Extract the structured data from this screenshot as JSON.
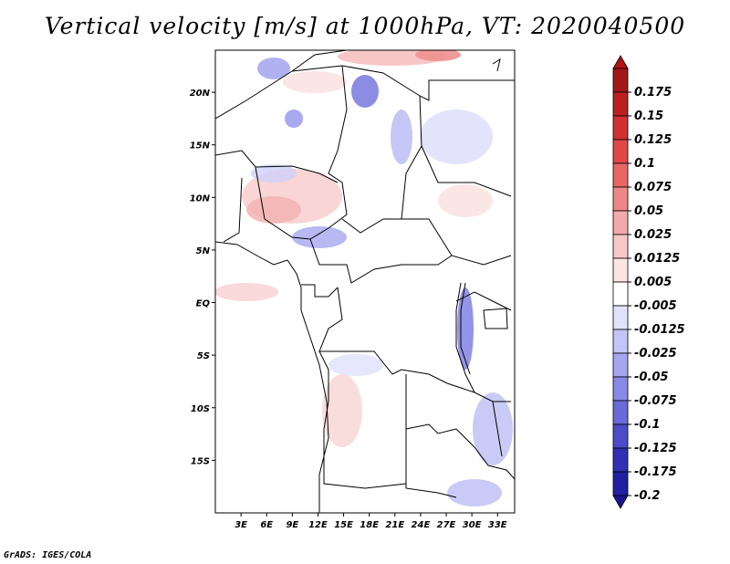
{
  "title": "Vertical velocity [m/s] at 1000hPa, VT: 2020040500",
  "credit": "GrADS: IGES/COLA",
  "map": {
    "region": "Central Africa",
    "lon_range": [
      0,
      35
    ],
    "lat_range": [
      -20,
      24
    ],
    "lat_ticks": [
      {
        "value": 20,
        "label": "20N"
      },
      {
        "value": 15,
        "label": "15N"
      },
      {
        "value": 10,
        "label": "10N"
      },
      {
        "value": 5,
        "label": "5N"
      },
      {
        "value": 0,
        "label": "EQ"
      },
      {
        "value": -5,
        "label": "5S"
      },
      {
        "value": -10,
        "label": "10S"
      },
      {
        "value": -15,
        "label": "15S"
      }
    ],
    "lon_ticks": [
      {
        "value": 3,
        "label": "3E"
      },
      {
        "value": 6,
        "label": "6E"
      },
      {
        "value": 9,
        "label": "9E"
      },
      {
        "value": 12,
        "label": "12E"
      },
      {
        "value": 15,
        "label": "15E"
      },
      {
        "value": 18,
        "label": "18E"
      },
      {
        "value": 21,
        "label": "21E"
      },
      {
        "value": 24,
        "label": "24E"
      },
      {
        "value": 27,
        "label": "27E"
      },
      {
        "value": 30,
        "label": "30E"
      },
      {
        "value": 33,
        "label": "33E"
      }
    ]
  },
  "colorbar": {
    "levels": [
      {
        "label": "0.175",
        "color": "#a01818"
      },
      {
        "label": "0.15",
        "color": "#bb2020"
      },
      {
        "label": "0.125",
        "color": "#d23030"
      },
      {
        "label": "0.1",
        "color": "#e04848"
      },
      {
        "label": "0.075",
        "color": "#e86666"
      },
      {
        "label": "0.05",
        "color": "#ee8888"
      },
      {
        "label": "0.025",
        "color": "#f4aaaa"
      },
      {
        "label": "0.0125",
        "color": "#f8c8c8"
      },
      {
        "label": "0.005",
        "color": "#fce4e4"
      },
      {
        "label": "-0.005",
        "color": "#ffffff"
      },
      {
        "label": "-0.0125",
        "color": "#e2e2fc"
      },
      {
        "label": "-0.025",
        "color": "#c4c4f6"
      },
      {
        "label": "-0.05",
        "color": "#a6a6f0"
      },
      {
        "label": "-0.075",
        "color": "#8888e6"
      },
      {
        "label": "-0.1",
        "color": "#6a6ad8"
      },
      {
        "label": "-0.125",
        "color": "#4c4cc8"
      },
      {
        "label": "-0.175",
        "color": "#3030b4"
      },
      {
        "label": "-0.2",
        "color": "#2020a0"
      }
    ],
    "top_cap_color": "#b01414",
    "bottom_cap_color": "#1a1490"
  }
}
